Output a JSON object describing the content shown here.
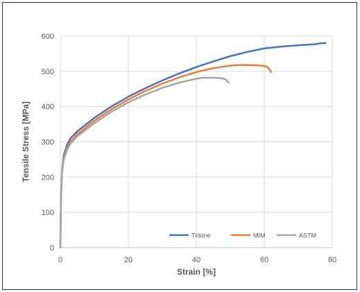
{
  "chart_data": {
    "type": "line",
    "xlabel": "Strain [%]",
    "ylabel": "Tensile Stress [MPa]",
    "xlim": [
      0,
      80
    ],
    "ylim": [
      0,
      600
    ],
    "xticks": [
      "0",
      "20",
      "40",
      "60",
      "80"
    ],
    "yticks": [
      "0",
      "100",
      "200",
      "300",
      "400",
      "500",
      "600"
    ],
    "grid": "vertical-and-horizontal",
    "legend_position": "bottom-right-inside",
    "series": [
      {
        "name": "Tritone",
        "color": "#4472c4",
        "x": [
          0,
          0.2,
          0.5,
          1,
          2,
          3,
          5,
          10,
          15,
          20,
          25,
          30,
          35,
          40,
          45,
          50,
          55,
          60,
          65,
          70,
          75,
          77,
          78
        ],
        "y": [
          0,
          150,
          220,
          262,
          292,
          310,
          330,
          368,
          400,
          428,
          452,
          474,
          494,
          512,
          528,
          543,
          555,
          565,
          570,
          574,
          577,
          580,
          580
        ]
      },
      {
        "name": "MIM",
        "color": "#ed7d31",
        "x": [
          0,
          0.2,
          0.5,
          1,
          2,
          3,
          5,
          10,
          15,
          20,
          25,
          30,
          35,
          40,
          45,
          50,
          52,
          55,
          58,
          60,
          61,
          61.6,
          62
        ],
        "y": [
          0,
          150,
          215,
          255,
          282,
          300,
          322,
          360,
          392,
          420,
          444,
          465,
          483,
          498,
          509,
          516,
          518,
          518,
          517,
          515,
          512,
          505,
          498
        ]
      },
      {
        "name": "ASTM",
        "color": "#a5a5a5",
        "x": [
          0,
          0.2,
          0.5,
          1,
          2,
          3,
          5,
          10,
          15,
          20,
          25,
          30,
          35,
          40,
          42,
          45,
          47,
          48.5,
          49.5
        ],
        "y": [
          0,
          150,
          212,
          250,
          277,
          295,
          316,
          353,
          385,
          412,
          434,
          453,
          468,
          479,
          482,
          482,
          481,
          478,
          468
        ]
      }
    ]
  }
}
